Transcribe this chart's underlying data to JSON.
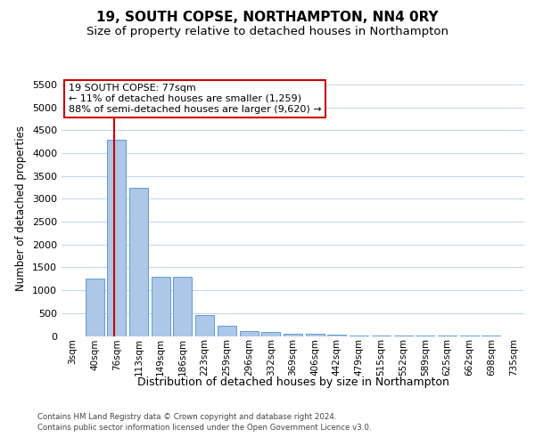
{
  "title": "19, SOUTH COPSE, NORTHAMPTON, NN4 0RY",
  "subtitle": "Size of property relative to detached houses in Northampton",
  "xlabel": "Distribution of detached houses by size in Northampton",
  "ylabel": "Number of detached properties",
  "bar_color": "#aec6e8",
  "bar_edge_color": "#5a9fd4",
  "categories": [
    "3sqm",
    "40sqm",
    "76sqm",
    "113sqm",
    "149sqm",
    "186sqm",
    "223sqm",
    "259sqm",
    "296sqm",
    "332sqm",
    "369sqm",
    "406sqm",
    "442sqm",
    "479sqm",
    "515sqm",
    "552sqm",
    "589sqm",
    "625sqm",
    "662sqm",
    "698sqm",
    "735sqm"
  ],
  "values": [
    0,
    1250,
    4300,
    3250,
    1300,
    1300,
    450,
    220,
    100,
    80,
    55,
    45,
    20,
    10,
    5,
    3,
    2,
    2,
    1,
    1,
    0
  ],
  "ylim": [
    0,
    5600
  ],
  "yticks": [
    0,
    500,
    1000,
    1500,
    2000,
    2500,
    3000,
    3500,
    4000,
    4500,
    5000,
    5500
  ],
  "vline_x": 1.88,
  "annotation_text": "19 SOUTH COPSE: 77sqm\n← 11% of detached houses are smaller (1,259)\n88% of semi-detached houses are larger (9,620) →",
  "annotation_box_color": "#ffffff",
  "annotation_box_edge": "#cc0000",
  "vline_color": "#cc0000",
  "footnote1": "Contains HM Land Registry data © Crown copyright and database right 2024.",
  "footnote2": "Contains public sector information licensed under the Open Government Licence v3.0.",
  "bg_color": "#ffffff",
  "grid_color": "#c8d8e8",
  "title_fontsize": 11,
  "subtitle_fontsize": 9.5
}
